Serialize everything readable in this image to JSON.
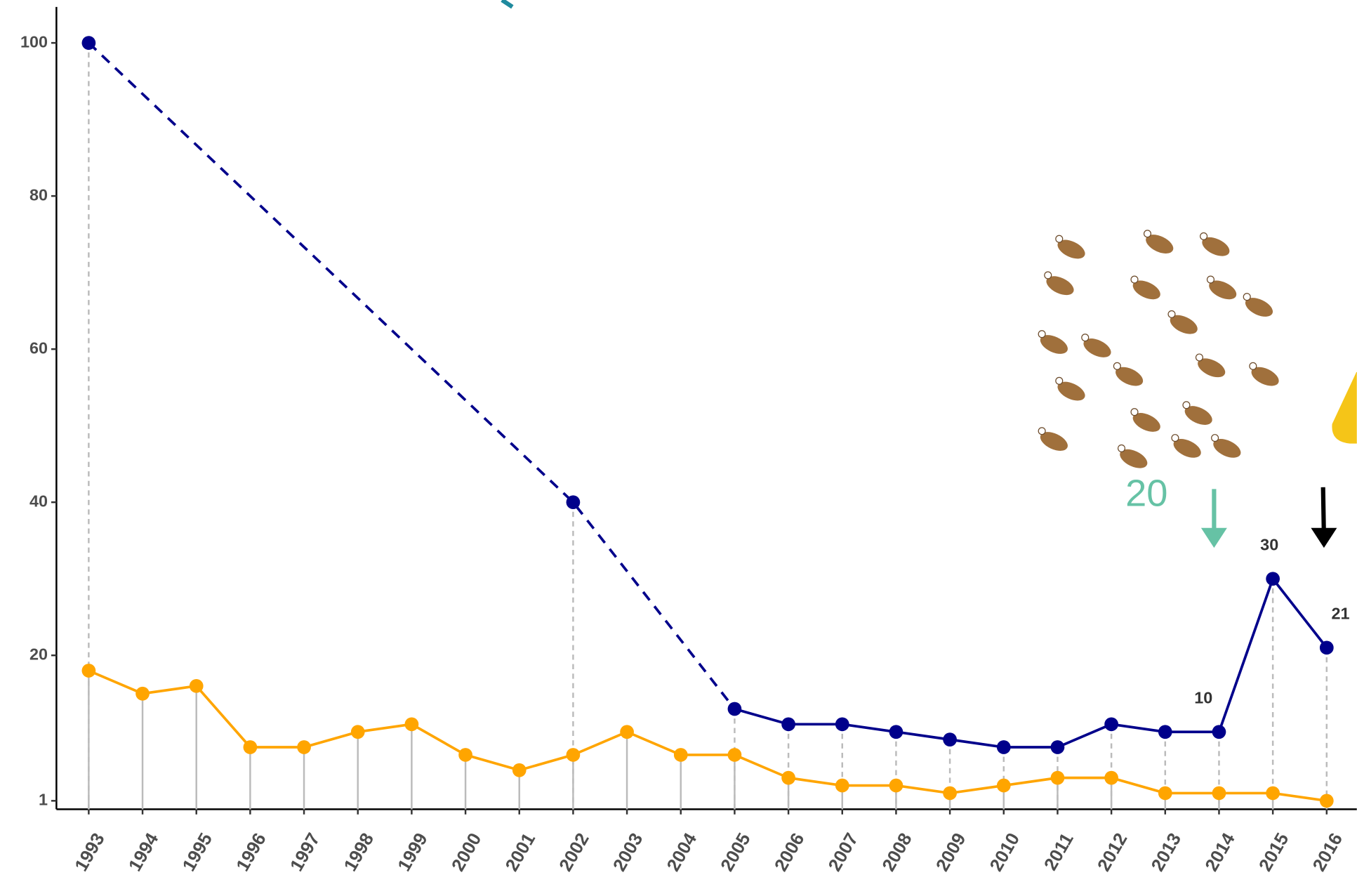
{
  "chart_data": {
    "type": "line",
    "x": [
      1993,
      1994,
      1995,
      1996,
      1997,
      1998,
      1999,
      2000,
      2001,
      2002,
      2003,
      2004,
      2005,
      2006,
      2007,
      2008,
      2009,
      2010,
      2011,
      2012,
      2013,
      2014,
      2015,
      2016
    ],
    "xlim": [
      1992.4,
      2016.56
    ],
    "xticks": [
      1993,
      1994,
      1995,
      1996,
      1997,
      1998,
      1999,
      2000,
      2001,
      2002,
      2003,
      2004,
      2005,
      2006,
      2007,
      2008,
      2009,
      2010,
      2011,
      2012,
      2013,
      2014,
      2015,
      2016
    ],
    "ylim": [
      -0.1,
      104.7
    ],
    "yticks": [
      1,
      20,
      40,
      60,
      80,
      100
    ],
    "series": [
      {
        "color": "#00008b",
        "values": [
          100,
          null,
          null,
          null,
          null,
          null,
          null,
          null,
          null,
          40,
          null,
          null,
          13,
          11,
          11,
          10,
          9,
          8,
          8,
          11,
          10,
          10,
          30,
          21
        ],
        "value_labels": [
          null,
          null,
          null,
          null,
          null,
          null,
          null,
          null,
          null,
          null,
          null,
          null,
          null,
          null,
          null,
          null,
          null,
          null,
          null,
          null,
          null,
          "10",
          "30",
          "21"
        ]
      },
      {
        "color": "#ffa500",
        "values": [
          18,
          15,
          16,
          8,
          8,
          10,
          11,
          7,
          5,
          7,
          10,
          7,
          7,
          4,
          3,
          3,
          2,
          3,
          4,
          4,
          2,
          2,
          2,
          1
        ]
      }
    ],
    "annotations": [
      {
        "text": "20",
        "color": "#66c2a5"
      }
    ]
  }
}
